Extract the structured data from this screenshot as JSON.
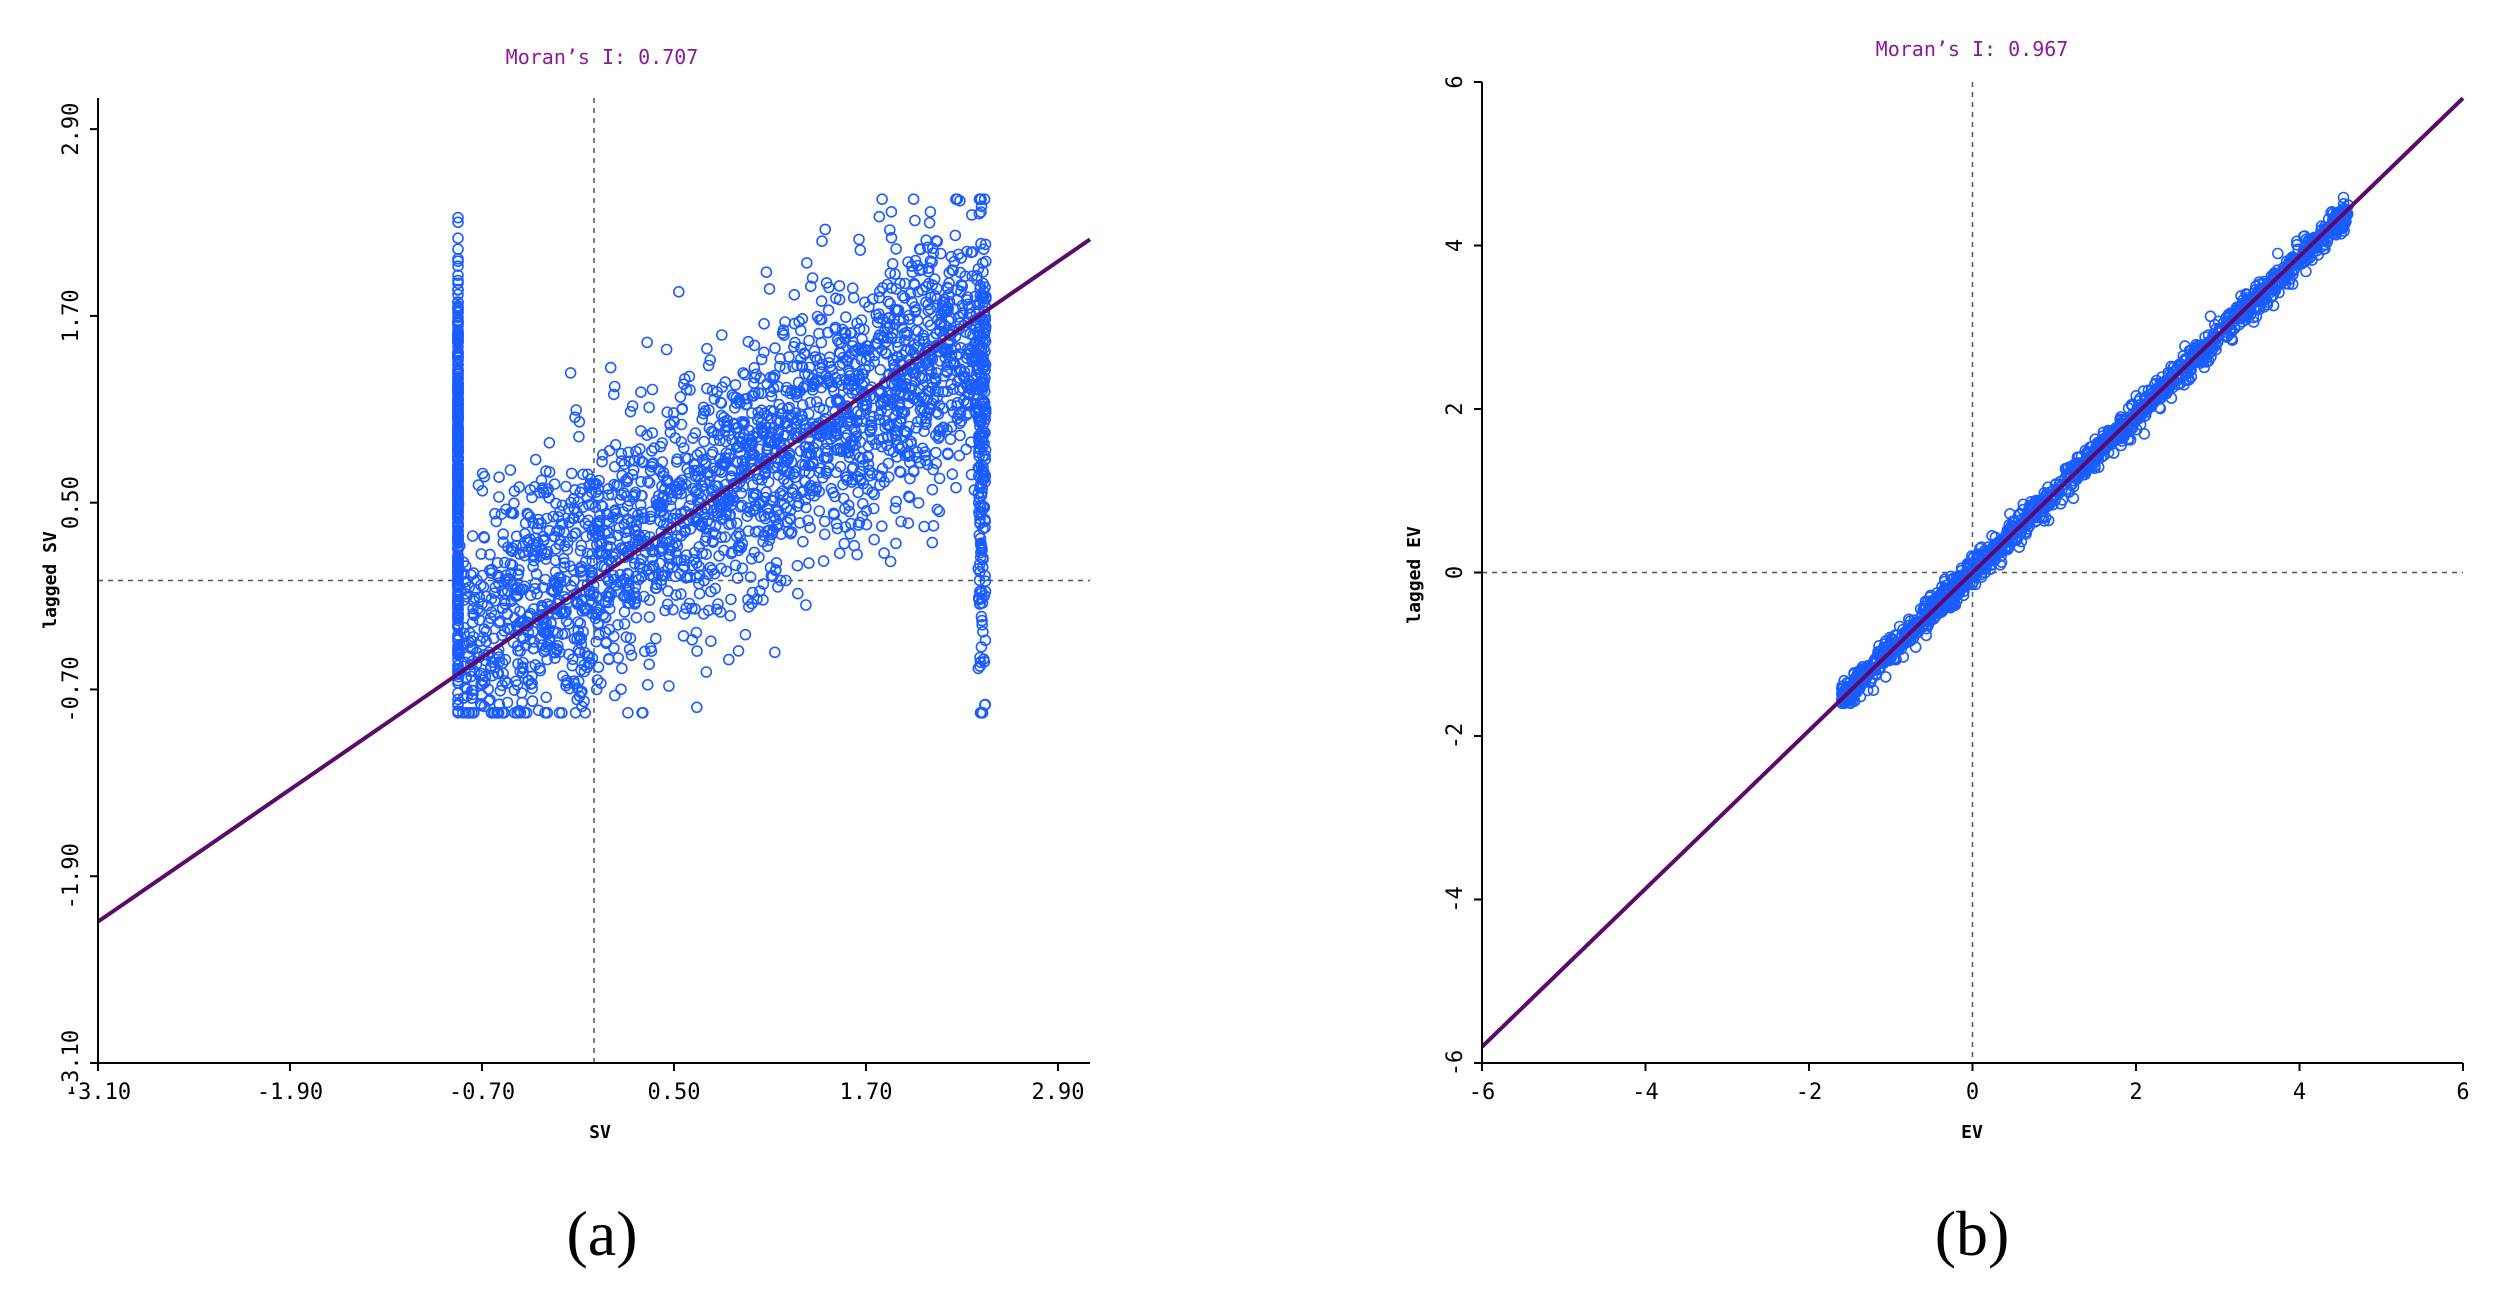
{
  "chart_data": [
    {
      "type": "scatter",
      "title": "Moran’s I: 0.707",
      "xlabel": "SV",
      "ylabel": "lagged SV",
      "xlim": [
        -3.1,
        3.1
      ],
      "ylim": [
        -3.1,
        3.1
      ],
      "xticks": [
        "-3.10",
        "-1.90",
        "-0.70",
        "0.50",
        "1.70",
        "2.90"
      ],
      "yticks": [
        "-3.10",
        "-1.90",
        "-0.70",
        "0.50",
        "1.70",
        "2.90"
      ],
      "tick_values": [
        -3.1,
        -1.9,
        -0.7,
        0.5,
        1.7,
        2.9
      ],
      "fit_line": {
        "slope": 0.707,
        "intercept": 0.0
      },
      "reference_lines": {
        "x": 0.0,
        "y": 0.0
      },
      "point_cloud": {
        "x_range": [
          -0.85,
          2.45
        ],
        "y_range": [
          -0.85,
          2.45
        ],
        "approx_count": 3000
      },
      "grid": false,
      "panel_label": "(a)"
    },
    {
      "type": "scatter",
      "title": "Moran’s I: 0.967",
      "xlabel": "EV",
      "ylabel": "lagged EV",
      "xlim": [
        -6,
        6
      ],
      "ylim": [
        -6,
        6
      ],
      "xticks": [
        "-6",
        "-4",
        "-2",
        "0",
        "2",
        "4",
        "6"
      ],
      "yticks": [
        "-6",
        "-4",
        "-2",
        "0",
        "2",
        "4",
        "6"
      ],
      "tick_values": [
        -6,
        -4,
        -2,
        0,
        2,
        4,
        6
      ],
      "fit_line": {
        "slope": 0.967,
        "intercept": 0.0
      },
      "reference_lines": {
        "x": 0.0,
        "y": 0.0
      },
      "point_cloud": {
        "x_range": [
          -1.6,
          4.6
        ],
        "y_range": [
          -1.6,
          4.4
        ],
        "approx_count": 1500
      },
      "grid": false,
      "panel_label": "(b)"
    }
  ]
}
